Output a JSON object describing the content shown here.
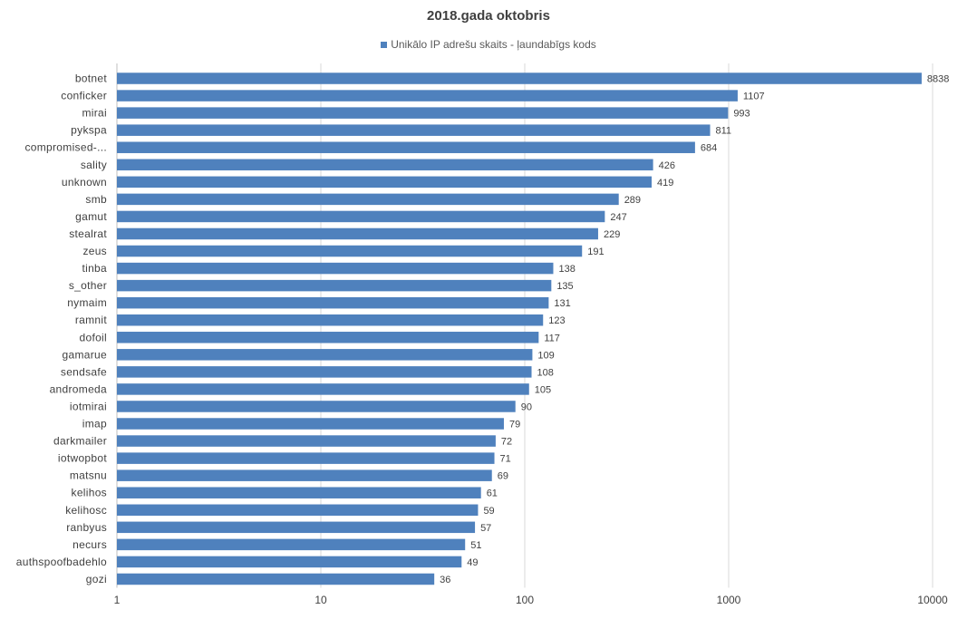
{
  "chart_data": {
    "type": "bar",
    "orientation": "horizontal",
    "title": "2018.gada oktobris",
    "legend": {
      "position": "top",
      "label": "Unikālo IP adrešu skaits -  ļaundabīgs kods"
    },
    "xscale": "log",
    "xlim": [
      1,
      10000
    ],
    "xticks": [
      "1",
      "10",
      "100",
      "1000",
      "10000"
    ],
    "grid": true,
    "bar_color": "#4f81bd",
    "categories": [
      "botnet",
      "conficker",
      "mirai",
      "pykspa",
      "compromised-...",
      "sality",
      "unknown",
      "smb",
      "gamut",
      "stealrat",
      "zeus",
      "tinba",
      "s_other",
      "nymaim",
      "ramnit",
      "dofoil",
      "gamarue",
      "sendsafe",
      "andromeda",
      "iotmirai",
      "imap",
      "darkmailer",
      "iotwopbot",
      "matsnu",
      "kelihos",
      "kelihosc",
      "ranbyus",
      "necurs",
      "authspoofbadehlo",
      "gozi"
    ],
    "values": [
      8838,
      1107,
      993,
      811,
      684,
      426,
      419,
      289,
      247,
      229,
      191,
      138,
      135,
      131,
      123,
      117,
      109,
      108,
      105,
      90,
      79,
      72,
      71,
      69,
      61,
      59,
      57,
      51,
      49,
      36
    ]
  }
}
